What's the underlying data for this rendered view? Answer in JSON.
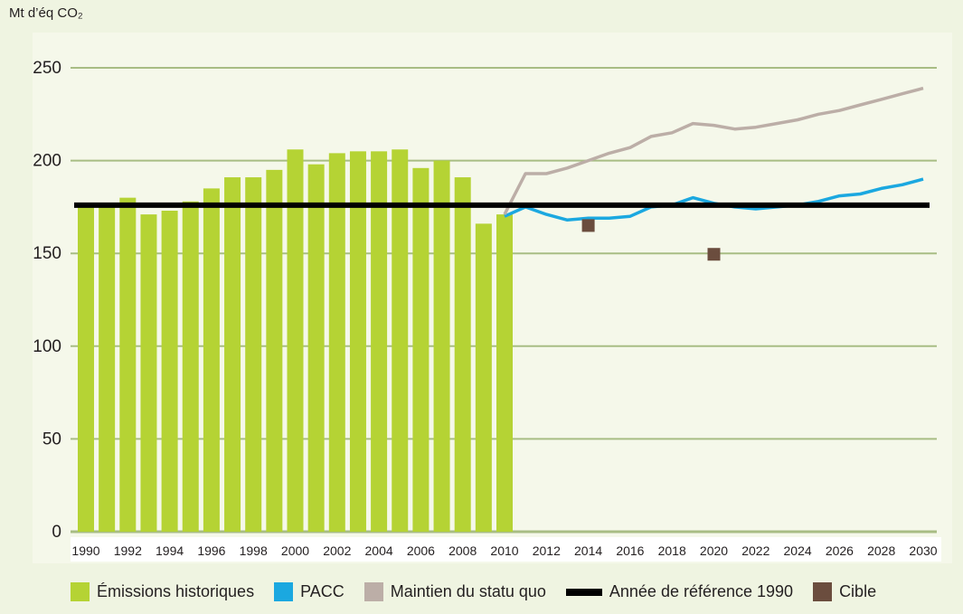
{
  "chart_data": {
    "type": "bar",
    "ylabel": "Mt d’éq CO₂",
    "ylim": [
      0,
      250
    ],
    "yticks": [
      0,
      50,
      100,
      150,
      200,
      250
    ],
    "xticks": [
      1990,
      1992,
      1994,
      1996,
      1998,
      2000,
      2002,
      2004,
      2006,
      2008,
      2010,
      2012,
      2014,
      2016,
      2018,
      2020,
      2022,
      2024,
      2026,
      2028,
      2030
    ],
    "grid": true,
    "legend_position": "bottom",
    "series": [
      {
        "name": "Émissions historiques",
        "kind": "bar",
        "color": "#b5d334",
        "x": [
          1990,
          1991,
          1992,
          1993,
          1994,
          1995,
          1996,
          1997,
          1998,
          1999,
          2000,
          2001,
          2002,
          2003,
          2004,
          2005,
          2006,
          2007,
          2008,
          2009,
          2010
        ],
        "values": [
          176,
          175,
          180,
          171,
          173,
          178,
          185,
          191,
          191,
          195,
          206,
          198,
          204,
          205,
          205,
          206,
          196,
          200,
          191,
          166,
          171
        ]
      },
      {
        "name": "PACC",
        "kind": "line",
        "color": "#1ba8e0",
        "x": [
          2010,
          2011,
          2012,
          2013,
          2014,
          2015,
          2016,
          2017,
          2018,
          2019,
          2020,
          2021,
          2022,
          2023,
          2024,
          2025,
          2026,
          2027,
          2028,
          2029,
          2030
        ],
        "values": [
          170,
          175,
          171,
          168,
          169,
          169,
          170,
          175,
          176,
          180,
          177,
          175,
          174,
          175,
          176,
          178,
          181,
          182,
          185,
          187,
          190
        ]
      },
      {
        "name": "Maintien du statu quo",
        "kind": "line",
        "color": "#bcaea7",
        "x": [
          2010,
          2011,
          2012,
          2013,
          2014,
          2015,
          2016,
          2017,
          2018,
          2019,
          2020,
          2021,
          2022,
          2023,
          2024,
          2025,
          2026,
          2027,
          2028,
          2029,
          2030
        ],
        "values": [
          171,
          193,
          193,
          196,
          200,
          204,
          207,
          213,
          215,
          220,
          219,
          217,
          218,
          220,
          222,
          225,
          227,
          230,
          233,
          236,
          239
        ]
      },
      {
        "name": "Année de référence 1990",
        "kind": "hline",
        "color": "#000000",
        "value": 176
      },
      {
        "name": "Cible",
        "kind": "marker",
        "color": "#6b4d3e",
        "x": [
          2014,
          2020
        ],
        "values": [
          165,
          149.5
        ]
      }
    ]
  }
}
